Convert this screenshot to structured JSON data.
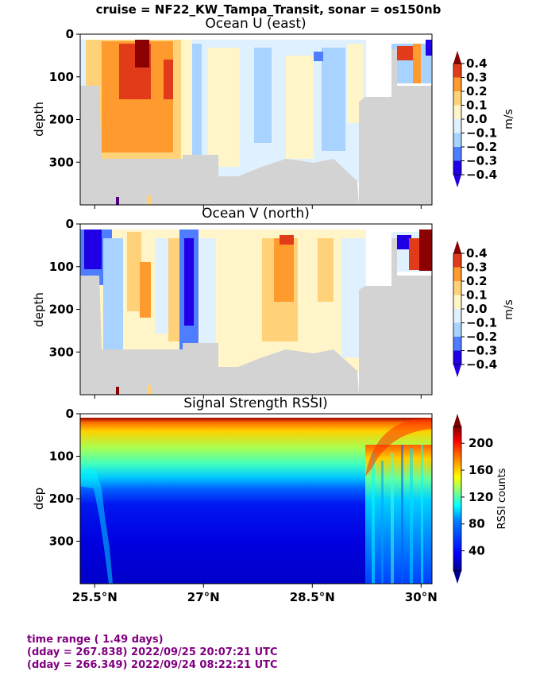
{
  "suptitle": "cruise = NF22_KW_Tampa_Transit,  sonar = os150nb",
  "footer": {
    "line1": "time range ( 1.49 days)",
    "line2": "(dday = 267.838) 2022/09/25 20:07:21 UTC",
    "line3": "(dday = 266.349) 2022/09/24 08:22:21 UTC"
  },
  "chart_data": [
    {
      "type": "heatmap",
      "title": "Ocean U (east)",
      "ylabel": "depth",
      "xlim": [
        25.3,
        30.15
      ],
      "ylim": [
        400,
        0
      ],
      "xticks": [
        25.5,
        27.0,
        28.5,
        30.0
      ],
      "xtick_labels": [
        "25.5°N",
        "27°N",
        "28.5°N",
        "30°N"
      ],
      "yticks": [
        0,
        100,
        200,
        300
      ],
      "ytick_labels": [
        "0",
        "100",
        "200",
        "300"
      ],
      "colorbar": {
        "label": "m/s",
        "range": [
          -0.4,
          0.4
        ],
        "ticks": [
          "0.4",
          "0.3",
          "0.2",
          "0.1",
          "0.0",
          "−0.1",
          "−0.2",
          "−0.3",
          "−0.4"
        ],
        "colors": [
          "#1f00e6",
          "#4f7dff",
          "#a8d2ff",
          "#dff0ff",
          "#fff5c8",
          "#ffd27a",
          "#ff9a2e",
          "#e23b1a",
          "#8b0000"
        ]
      },
      "columns_lat": [
        25.5,
        25.75,
        26.0,
        26.25,
        26.5,
        26.75,
        27.0,
        27.25,
        27.5,
        27.75,
        28.0,
        28.25,
        28.5,
        28.75,
        29.0,
        29.25,
        29.5,
        29.75,
        30.0
      ],
      "values_mps": [
        [
          0.1,
          0.2,
          0.3,
          0.4,
          0.3,
          0.2,
          0.0,
          -0.1,
          -0.1,
          0.0,
          -0.1,
          0.0,
          -0.1,
          -0.1,
          -0.2,
          -0.1,
          -0.1,
          0.3,
          -0.2
        ],
        [
          0.1,
          0.2,
          0.2,
          0.3,
          0.3,
          0.2,
          0.0,
          -0.1,
          -0.1,
          0.0,
          0.0,
          0.0,
          -0.1,
          0.0,
          -0.1,
          -0.1,
          -0.1,
          -0.1,
          0.1
        ],
        [
          0.1,
          0.1,
          0.2,
          0.3,
          0.3,
          0.1,
          0.0,
          -0.1,
          0.0,
          0.0,
          0.0,
          0.0,
          -0.1,
          0.0,
          -0.1,
          -0.1,
          -0.1,
          -0.1,
          -0.1
        ],
        [
          0.1,
          0.1,
          0.2,
          0.2,
          0.2,
          0.1,
          0.0,
          -0.1,
          0.0,
          0.0,
          0.0,
          0.0,
          0.0,
          0.0,
          -0.1,
          -0.1,
          -0.1,
          -0.1,
          -0.1
        ],
        [
          0.0,
          0.1,
          0.1,
          0.2,
          0.2,
          0.1,
          0.0,
          -0.1,
          0.0,
          0.0,
          0.0,
          0.0,
          0.0,
          0.0,
          0.0,
          -0.1,
          -0.1,
          -0.1,
          -0.1
        ]
      ]
    },
    {
      "type": "heatmap",
      "title": "Ocean V (north)",
      "ylabel": "depth",
      "xlim": [
        25.3,
        30.15
      ],
      "ylim": [
        400,
        0
      ],
      "xticks": [
        25.5,
        27.0,
        28.5,
        30.0
      ],
      "xtick_labels": [
        "25.5°N",
        "27°N",
        "28.5°N",
        "30°N"
      ],
      "yticks": [
        0,
        100,
        200,
        300
      ],
      "ytick_labels": [
        "0",
        "100",
        "200",
        "300"
      ],
      "colorbar": {
        "label": "m/s",
        "range": [
          -0.4,
          0.4
        ],
        "ticks": [
          "0.4",
          "0.3",
          "0.2",
          "0.1",
          "0.0",
          "−0.1",
          "−0.2",
          "−0.3",
          "−0.4"
        ]
      },
      "columns_lat": [
        25.5,
        25.75,
        26.0,
        26.25,
        26.5,
        26.75,
        27.0,
        27.25,
        27.5,
        27.75,
        28.0,
        28.25,
        28.5,
        28.75,
        29.0,
        29.25,
        29.5,
        29.75,
        30.0
      ],
      "values_mps": [
        [
          -0.4,
          -0.3,
          0.0,
          0.2,
          -0.1,
          0.1,
          -0.3,
          0.1,
          0.0,
          0.0,
          0.1,
          0.3,
          0.1,
          0.1,
          0.0,
          0.0,
          0.0,
          -0.3,
          0.4
        ],
        [
          -0.3,
          -0.3,
          -0.1,
          0.2,
          0.0,
          0.1,
          -0.3,
          0.1,
          0.0,
          0.0,
          0.1,
          0.2,
          0.2,
          0.1,
          0.1,
          0.0,
          0.0,
          0.2,
          0.3
        ],
        [
          -0.2,
          -0.2,
          0.0,
          0.1,
          0.0,
          0.1,
          -0.3,
          0.0,
          0.0,
          0.0,
          0.1,
          0.2,
          0.1,
          0.1,
          0.0,
          0.0,
          0.0,
          0.0,
          0.0
        ],
        [
          -0.1,
          -0.1,
          0.0,
          0.1,
          0.0,
          0.1,
          -0.3,
          0.0,
          0.0,
          0.0,
          0.0,
          0.1,
          0.1,
          0.0,
          0.0,
          0.0,
          0.0,
          0.0,
          0.0
        ],
        [
          -0.1,
          -0.1,
          0.0,
          0.1,
          0.0,
          0.1,
          -0.2,
          0.0,
          0.0,
          0.0,
          0.0,
          0.0,
          0.0,
          0.0,
          0.0,
          0.0,
          0.0,
          0.0,
          0.0
        ]
      ]
    },
    {
      "type": "heatmap",
      "title": "Signal Strength RSSI)",
      "ylabel": "dep",
      "xlim": [
        25.3,
        30.15
      ],
      "ylim": [
        400,
        0
      ],
      "xticks": [
        25.5,
        27.0,
        28.5,
        30.0
      ],
      "xtick_labels": [
        "25.5°N",
        "27°N",
        "28.5°N",
        "30°N"
      ],
      "yticks": [
        0,
        100,
        200,
        300
      ],
      "ytick_labels": [
        "0",
        "100",
        "200",
        "300"
      ],
      "colorbar": {
        "label": "RSSI counts",
        "range": [
          10,
          225
        ],
        "ticks": [
          "200",
          "160",
          "120",
          "80",
          "40"
        ],
        "colors": [
          "#00008b",
          "#0000ff",
          "#0080ff",
          "#00ffff",
          "#80ff80",
          "#ffff00",
          "#ff8000",
          "#ff0000",
          "#800000"
        ]
      },
      "depth_profile_counts": [
        {
          "depth": 15,
          "rssi": 190
        },
        {
          "depth": 30,
          "rssi": 150
        },
        {
          "depth": 55,
          "rssi": 115
        },
        {
          "depth": 85,
          "rssi": 90
        },
        {
          "depth": 110,
          "rssi": 70
        },
        {
          "depth": 150,
          "rssi": 35
        },
        {
          "depth": 250,
          "rssi": 25
        },
        {
          "depth": 380,
          "rssi": 20
        }
      ]
    }
  ]
}
